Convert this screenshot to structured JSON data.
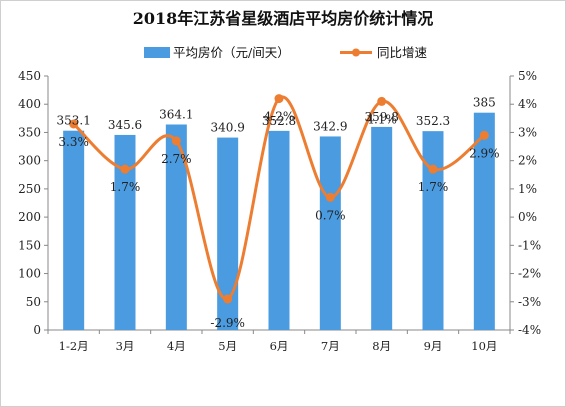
{
  "chart_data": {
    "type": "bar",
    "title": "2018年江苏省星级酒店平均房价统计情况",
    "categories": [
      "1-2月",
      "3月",
      "4月",
      "5月",
      "6月",
      "7月",
      "8月",
      "9月",
      "10月"
    ],
    "series": [
      {
        "name": "平均房价（元/间天）",
        "type": "bar",
        "axis": "left",
        "color": "#4a9be0",
        "values": [
          353.1,
          345.6,
          364.1,
          340.9,
          352.8,
          342.9,
          359.8,
          352.3,
          385
        ],
        "labels": [
          "353.1",
          "345.6",
          "364.1",
          "340.9",
          "352.8",
          "342.9",
          "359.8",
          "352.3",
          "385"
        ]
      },
      {
        "name": "同比增速",
        "type": "line",
        "axis": "right",
        "color": "#ed7d31",
        "values": [
          3.3,
          1.7,
          2.7,
          -2.9,
          4.2,
          0.7,
          4.1,
          1.7,
          2.9
        ],
        "labels": [
          "3.3%",
          "1.7%",
          "2.7%",
          "-2.9%",
          "4.2%",
          "0.7%",
          "4.1%",
          "1.7%",
          "2.9%"
        ]
      }
    ],
    "y_left": {
      "min": 0,
      "max": 450,
      "ticks": [
        "0",
        "50",
        "100",
        "150",
        "200",
        "250",
        "300",
        "350",
        "400",
        "450"
      ]
    },
    "y_right": {
      "min": -4,
      "max": 5,
      "ticks": [
        "-4%",
        "-3%",
        "-2%",
        "-1%",
        "0%",
        "1%",
        "2%",
        "3%",
        "4%",
        "5%"
      ]
    },
    "legend_position": "top-center",
    "grid": false
  }
}
